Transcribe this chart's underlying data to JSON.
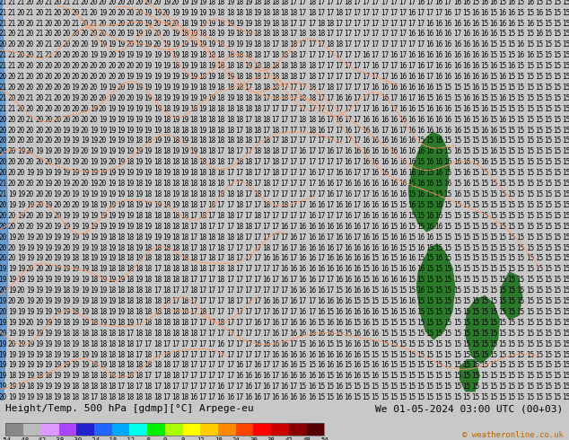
{
  "title_left": "Height/Temp. 500 hPa [gdmp][°C] Arpege-eu",
  "title_right": "We 01-05-2024 03:00 UTC (00+03)",
  "copyright": "© weatheronline.co.uk",
  "colorbar_tick_labels": [
    "-54",
    "-48",
    "-42",
    "-38",
    "-30",
    "-24",
    "-18",
    "-12",
    "-8",
    "0",
    "8",
    "12",
    "18",
    "24",
    "30",
    "38",
    "42",
    "48",
    "54"
  ],
  "colorbar_colors": [
    "#888888",
    "#bbbbbb",
    "#dd99ff",
    "#aa44ff",
    "#2222cc",
    "#2266ff",
    "#00aaff",
    "#00ffee",
    "#00ee00",
    "#aaff00",
    "#ffff00",
    "#ffcc00",
    "#ff8800",
    "#ff4400",
    "#ff0000",
    "#cc0000",
    "#880000",
    "#550000"
  ],
  "bg_color": "#00ccff",
  "fig_width": 6.34,
  "fig_height": 4.9,
  "dpi": 100,
  "title_fontsize": 8.0,
  "number_fontsize": 5.5,
  "contour_color": "#ff9966",
  "border_color": "#2244aa",
  "text_color": "#000000",
  "bottom_bg": "#c8c8c8"
}
